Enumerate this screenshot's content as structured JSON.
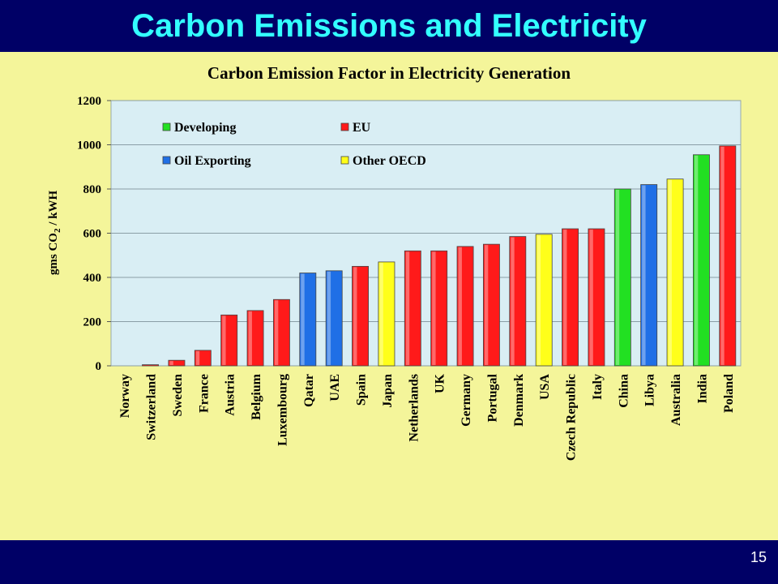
{
  "slide": {
    "title": "Carbon Emissions and Electricity",
    "page_number": "15"
  },
  "colors": {
    "title_bar": "#000066",
    "title_text": "#33ffff",
    "slide_background": "#f4f59a",
    "plot_background": "#d9eef4",
    "Developing": "#22e022",
    "EU": "#ff1a1a",
    "Oil Exporting": "#1f6fe6",
    "Other OECD": "#ffff1a"
  },
  "chart_data": {
    "type": "bar",
    "title": "Carbon Emission Factor in Electricity Generation",
    "ylabel_main": "gms CO",
    "ylabel_sub": "2",
    "ylabel_tail": " / kWH",
    "xlabel": "",
    "ylim": [
      0,
      1200
    ],
    "yticks": [
      0,
      200,
      400,
      600,
      800,
      1000,
      1200
    ],
    "grid": "horizontal",
    "legend_placement": "top-left, inside plot",
    "legend": [
      "Developing",
      "EU",
      "Oil Exporting",
      "Other OECD"
    ],
    "categories": [
      "Norway",
      "Switzerland",
      "Sweden",
      "France",
      "Austria",
      "Belgium",
      "Luxembourg",
      "Qatar",
      "UAE",
      "Spain",
      "Japan",
      "Netherlands",
      "UK",
      "Germany",
      "Portugal",
      "Denmark",
      "USA",
      "Czech Republic",
      "Italy",
      "China",
      "Libya",
      "Australia",
      "India",
      "Poland"
    ],
    "values": [
      0,
      5,
      25,
      70,
      230,
      250,
      300,
      420,
      430,
      450,
      470,
      520,
      520,
      540,
      550,
      585,
      595,
      620,
      620,
      800,
      820,
      845,
      955,
      995
    ],
    "groups": [
      "EU",
      "EU",
      "EU",
      "EU",
      "EU",
      "EU",
      "EU",
      "Oil Exporting",
      "Oil Exporting",
      "EU",
      "Other OECD",
      "EU",
      "EU",
      "EU",
      "EU",
      "EU",
      "Other OECD",
      "EU",
      "EU",
      "Developing",
      "Oil Exporting",
      "Other OECD",
      "Developing",
      "EU"
    ]
  }
}
